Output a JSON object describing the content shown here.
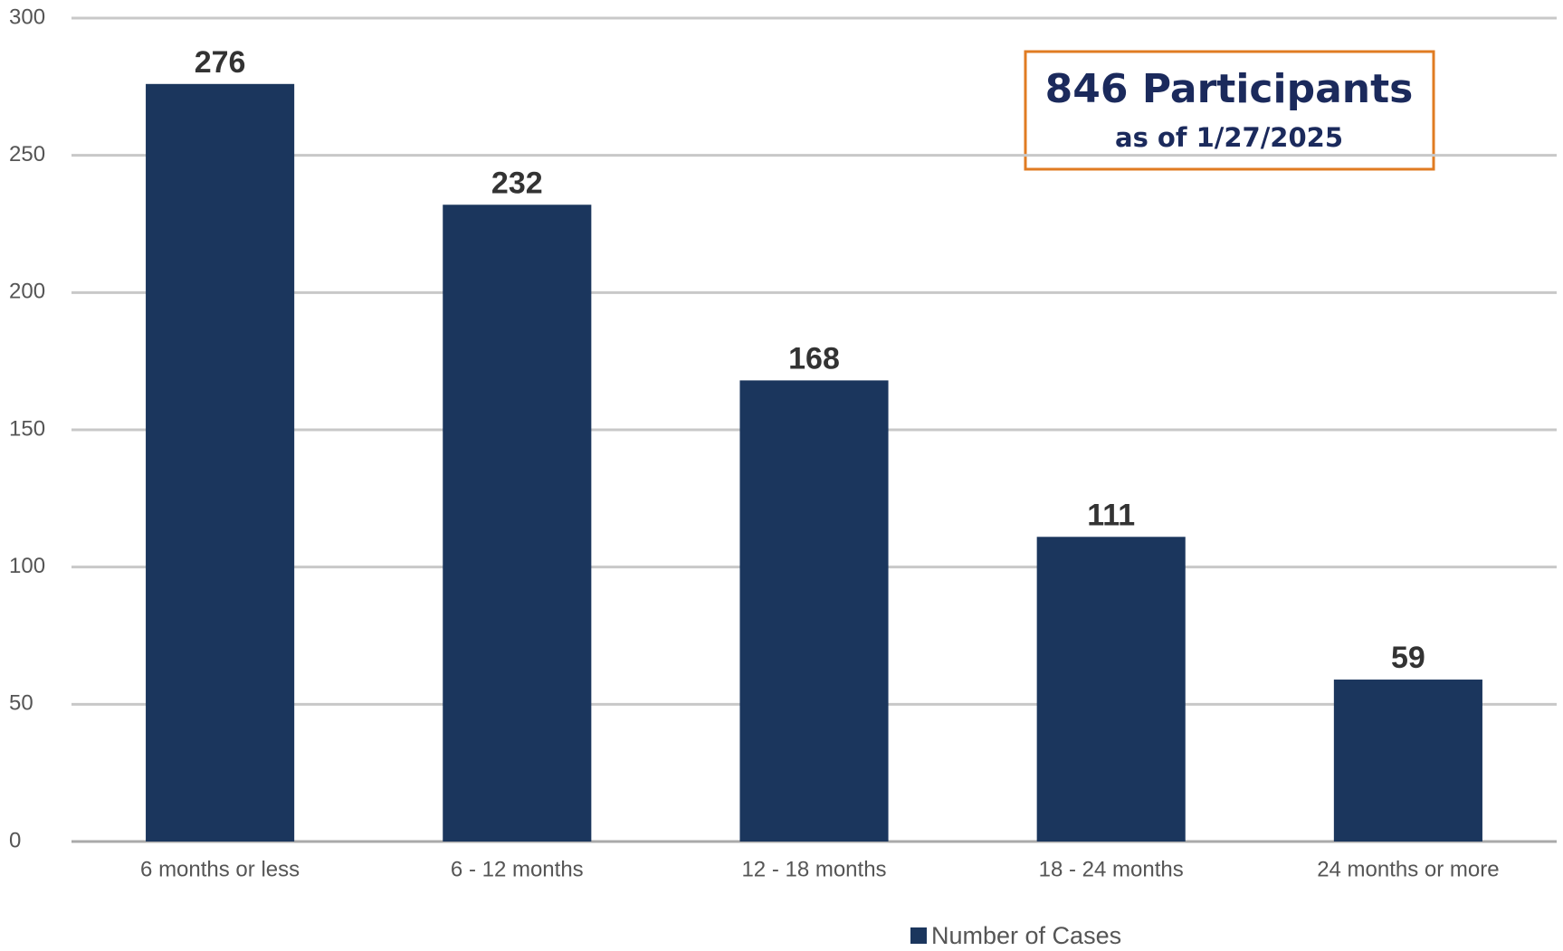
{
  "chart_data": {
    "type": "bar",
    "categories": [
      "6 months or less",
      "6 - 12 months",
      "12 - 18 months",
      "18 - 24 months",
      "24 months or more"
    ],
    "series": [
      {
        "name": "Number of Cases",
        "color": "#1b365d",
        "values": [
          276,
          232,
          168,
          111,
          59
        ]
      }
    ],
    "ylim": [
      0,
      300
    ],
    "yticks": [
      0,
      50,
      100,
      150,
      200,
      250,
      300
    ],
    "grid": true,
    "legend": "bottom",
    "annotation": {
      "title": "846 Participants",
      "subtitle": "as of 1/27/2025"
    }
  }
}
